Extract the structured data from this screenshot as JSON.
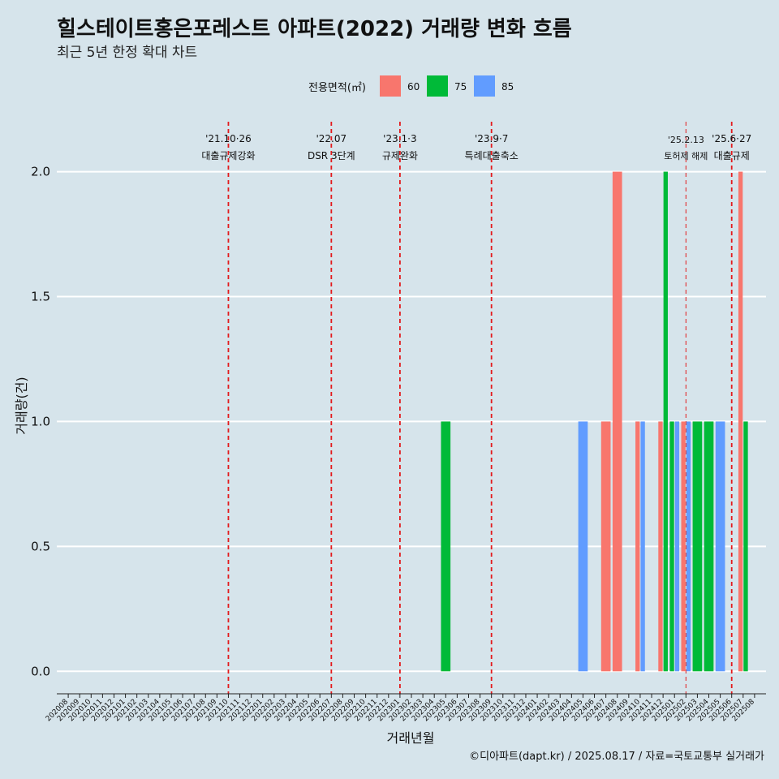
{
  "colors": {
    "background": "#d6e4eb",
    "grid": "#ffffff",
    "event_line": "#e31a1c",
    "series": {
      "60": "#f8766d",
      "75": "#00ba38",
      "85": "#619cff"
    }
  },
  "chart_data": {
    "type": "bar",
    "title": "힐스테이트홍은포레스트 아파트(2022) 거래량 변화 흐름",
    "subtitle": "최근 5년 한정 확대 차트",
    "xlabel": "거래년월",
    "ylabel": "거래량(건)",
    "ylim": [
      -0.09,
      2.2
    ],
    "yticks": [
      "0.0",
      "0.5",
      "1.0",
      "1.5",
      "2.0"
    ],
    "ytick_values": [
      0,
      0.5,
      1.0,
      1.5,
      2.0
    ],
    "legend_title": "전용면적(㎡)",
    "legend_placement": "top-center",
    "categories": [
      "202008",
      "202009",
      "202010",
      "202011",
      "202012",
      "202101",
      "202102",
      "202103",
      "202104",
      "202105",
      "202106",
      "202107",
      "202108",
      "202109",
      "202110",
      "202111",
      "202112",
      "202201",
      "202202",
      "202203",
      "202204",
      "202205",
      "202206",
      "202207",
      "202208",
      "202209",
      "202210",
      "202211",
      "202212",
      "202301",
      "202302",
      "202303",
      "202304",
      "202305",
      "202306",
      "202307",
      "202308",
      "202309",
      "202310",
      "202311",
      "202312",
      "202401",
      "202402",
      "202403",
      "202404",
      "202405",
      "202406",
      "202407",
      "202408",
      "202409",
      "202410",
      "202411",
      "202412",
      "202501",
      "202502",
      "202503",
      "202504",
      "202505",
      "202506",
      "202507",
      "202508"
    ],
    "series": [
      {
        "name": "60",
        "points": [
          {
            "month": "202407",
            "value": 1
          },
          {
            "month": "202408",
            "value": 2
          },
          {
            "month": "202410",
            "value": 1
          },
          {
            "month": "202412",
            "value": 1
          },
          {
            "month": "202502",
            "value": 1
          },
          {
            "month": "202507",
            "value": 2
          }
        ]
      },
      {
        "name": "75",
        "points": [
          {
            "month": "202305",
            "value": 1
          },
          {
            "month": "202412",
            "value": 2
          },
          {
            "month": "202501",
            "value": 1
          },
          {
            "month": "202503",
            "value": 1
          },
          {
            "month": "202504",
            "value": 1
          },
          {
            "month": "202507",
            "value": 1
          }
        ]
      },
      {
        "name": "85",
        "points": [
          {
            "month": "202405",
            "value": 1
          },
          {
            "month": "202410",
            "value": 1
          },
          {
            "month": "202501",
            "value": 1
          },
          {
            "month": "202502",
            "value": 1
          },
          {
            "month": "202505",
            "value": 1
          }
        ]
      }
    ],
    "events": [
      {
        "date_label": "'21.10·26",
        "name": "대출규제강화",
        "at_month": "202110",
        "style": "thick"
      },
      {
        "date_label": "'22.07",
        "name": "DSR 3단계",
        "at_month": "202207",
        "style": "thick"
      },
      {
        "date_label": "'23.1·3",
        "name": "규제완화",
        "at_month": "202301",
        "style": "thick"
      },
      {
        "date_label": "'23.9·7",
        "name": "특례대출축소",
        "at_month": "202309",
        "style": "thick"
      },
      {
        "date_label": "'25.2.13",
        "name": "토허제 해제",
        "at_month": "202502",
        "style": "thin"
      },
      {
        "date_label": "'25.6·27",
        "name": "대출규제",
        "at_month": "202506",
        "style": "thick"
      }
    ],
    "caption": "©디아파트(dapt.kr) / 2025.08.17 / 자료=국토교통부 실거래가"
  }
}
